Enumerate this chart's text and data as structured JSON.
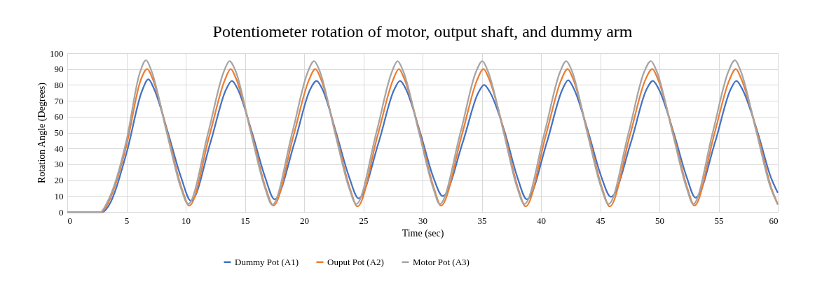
{
  "chart_data": {
    "type": "line",
    "title": "Potentiometer rotation of motor, output shaft, and dummy arm",
    "xlabel": "Time (sec)",
    "ylabel": "Rotation Angle (Degrees)",
    "xlim": [
      0,
      60
    ],
    "ylim": [
      0,
      100
    ],
    "xticks": [
      0,
      5,
      10,
      15,
      20,
      25,
      30,
      35,
      40,
      45,
      50,
      55,
      60
    ],
    "yticks": [
      0,
      10,
      20,
      30,
      40,
      50,
      60,
      70,
      80,
      90,
      100
    ],
    "grid": true,
    "legend": "bottom",
    "line_style": "solid",
    "marker": "none",
    "series": [
      {
        "name": "Dummy Pot (A1)",
        "color": "#4472c4",
        "x": [
          0,
          3.0,
          3.5,
          5,
          6.3,
          6.85,
          7.3,
          8.5,
          9.6,
          10.45,
          12.1,
          13.4,
          13.9,
          14.35,
          15.6,
          16.7,
          17.5,
          19.2,
          20.5,
          21.05,
          21.5,
          22.7,
          23.8,
          24.6,
          26.3,
          27.6,
          28.1,
          28.55,
          29.8,
          30.9,
          31.7,
          33.4,
          34.7,
          35.2,
          35.65,
          36.95,
          38.0,
          38.8,
          40.5,
          41.8,
          42.3,
          42.75,
          44.0,
          45.1,
          45.9,
          47.6,
          48.9,
          49.45,
          49.9,
          51.2,
          52.3,
          53.05,
          54.7,
          56.0,
          56.5,
          56.95,
          58.3,
          59.4,
          60
        ],
        "values": [
          0,
          0,
          4,
          37,
          76,
          83.5,
          78,
          50,
          22,
          7,
          44,
          77,
          82.5,
          78,
          50,
          22,
          8,
          44,
          77,
          82.5,
          78,
          50,
          22,
          8.5,
          44,
          77,
          82.5,
          78,
          50,
          22,
          10,
          44,
          75,
          80,
          76,
          50,
          22,
          8,
          44,
          77,
          83,
          78,
          50,
          22,
          9.5,
          44,
          77,
          82.5,
          78,
          50,
          22,
          9,
          44,
          77,
          82.5,
          78,
          50,
          22,
          12
        ]
      },
      {
        "name": "Ouput Pot (A2)",
        "color": "#ed7d31",
        "x": [
          0,
          2.9,
          3.4,
          5,
          6.2,
          6.75,
          7.2,
          8.45,
          9.7,
          10.3,
          12.0,
          13.3,
          13.8,
          14.25,
          15.55,
          16.8,
          17.4,
          19.1,
          20.4,
          20.95,
          21.4,
          22.65,
          23.9,
          24.5,
          26.2,
          27.5,
          28.0,
          28.45,
          29.75,
          31.0,
          31.55,
          33.3,
          34.6,
          35.15,
          35.6,
          36.9,
          38.1,
          38.7,
          40.4,
          41.7,
          42.25,
          42.7,
          43.95,
          45.2,
          45.8,
          47.5,
          48.8,
          49.4,
          49.85,
          51.15,
          52.4,
          52.95,
          54.6,
          55.9,
          56.45,
          56.9,
          58.25,
          59.5,
          60
        ],
        "values": [
          0,
          0,
          5,
          42,
          83,
          90,
          84,
          50,
          14,
          4,
          48,
          83,
          90,
          84,
          50,
          14,
          4,
          48,
          83,
          90,
          84,
          50,
          14,
          3.5,
          48,
          83,
          90,
          84,
          50,
          14,
          4,
          48,
          83,
          90,
          84,
          50,
          14,
          3.5,
          48,
          83,
          90,
          84,
          50,
          14,
          3.5,
          48,
          83,
          90,
          84,
          50,
          14,
          4,
          48,
          83,
          90,
          84,
          50,
          14,
          5
        ]
      },
      {
        "name": "Motor Pot (A3)",
        "color": "#a5a5a5",
        "x": [
          0,
          2.8,
          3.3,
          5,
          6.1,
          6.65,
          7.1,
          8.4,
          9.6,
          10.2,
          11.9,
          13.2,
          13.7,
          14.2,
          15.5,
          16.7,
          17.3,
          19.0,
          20.3,
          20.84,
          21.3,
          22.6,
          23.8,
          24.4,
          26.1,
          27.4,
          27.89,
          28.35,
          29.7,
          30.9,
          31.45,
          33.2,
          34.5,
          35.05,
          35.5,
          36.85,
          38.0,
          38.6,
          40.3,
          41.6,
          42.13,
          42.6,
          43.9,
          45.1,
          45.7,
          47.4,
          48.7,
          49.28,
          49.75,
          51.1,
          52.3,
          52.85,
          54.5,
          55.8,
          56.38,
          56.85,
          58.2,
          59.4,
          60
        ],
        "values": [
          0,
          0,
          5,
          45,
          87,
          95.5,
          89,
          50,
          15,
          5,
          50,
          88,
          95,
          89,
          50,
          15,
          4.5,
          50,
          88,
          95,
          89,
          50,
          15,
          5,
          50,
          88,
          95,
          89,
          50,
          15,
          5,
          50,
          88,
          95,
          89,
          50,
          15,
          5,
          50,
          88,
          95,
          89,
          50,
          15,
          5,
          50,
          88,
          95,
          89,
          50,
          15,
          5,
          50,
          88,
          95.5,
          89,
          50,
          15,
          4.5
        ]
      }
    ]
  }
}
